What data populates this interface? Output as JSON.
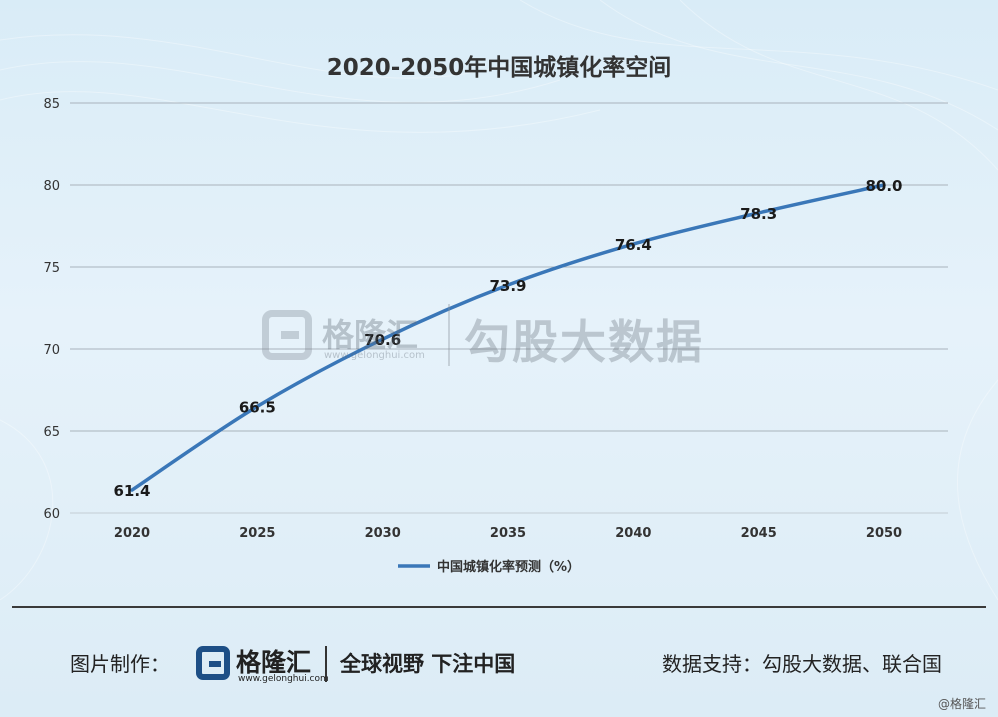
{
  "chart_data": {
    "type": "line",
    "title": "2020-2050年中国城镇化率空间",
    "categories": [
      "2020",
      "2025",
      "2030",
      "2035",
      "2040",
      "2045",
      "2050"
    ],
    "series": [
      {
        "name": "中国城镇化率预测（%）",
        "values": [
          61.4,
          66.5,
          70.6,
          73.9,
          76.4,
          78.3,
          80.0
        ],
        "color": "#3a77b8"
      }
    ],
    "data_labels": [
      "61.4",
      "66.5",
      "70.6",
      "73.9",
      "76.4",
      "78.3",
      "80.0"
    ],
    "ylim": [
      60,
      85
    ],
    "yticks": [
      "60",
      "65",
      "70",
      "75",
      "80",
      "85"
    ],
    "grid": true,
    "legend_position": "bottom"
  },
  "watermark": {
    "brand": "格隆汇",
    "url": "www.gelonghui.com",
    "text": "勾股大数据"
  },
  "footer": {
    "made_by_label": "图片制作：",
    "brand": "格隆汇",
    "url": "www.gelonghui.com",
    "slogan": "全球视野 下注中国",
    "source": "数据支持：勾股大数据、联合国",
    "credit": "@格隆汇"
  }
}
